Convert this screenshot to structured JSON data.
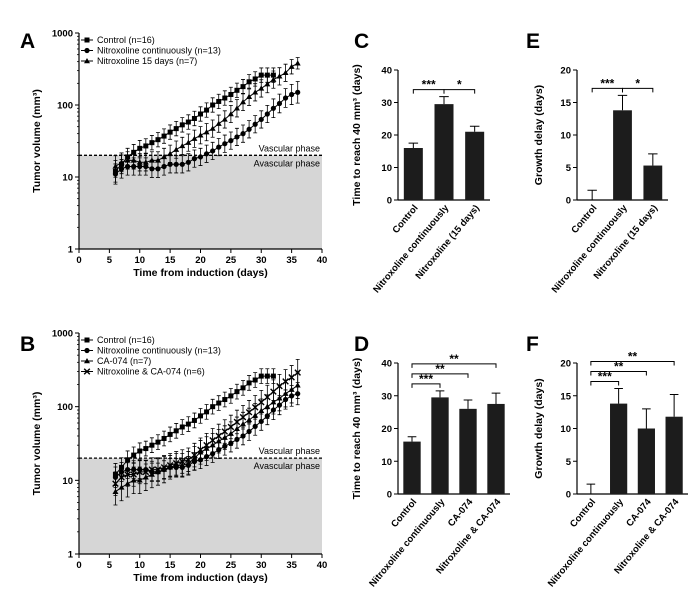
{
  "chart_data": [
    {
      "panel": "A",
      "type": "line",
      "xlabel": "Time from induction (days)",
      "ylabel": "Tumor volume (mm³)",
      "yscale": "log",
      "xlim": [
        0,
        40
      ],
      "ylim": [
        1,
        1000
      ],
      "xticks": [
        "0",
        "5",
        "10",
        "15",
        "20",
        "25",
        "30",
        "35",
        "40"
      ],
      "yticks": [
        "1",
        "10",
        "100",
        "1000"
      ],
      "threshold": 20,
      "threshold_labels": [
        "Vascular phase",
        "Avascular phase"
      ],
      "legend_position": "top-left",
      "series": [
        {
          "name": "Control (n=16)",
          "marker": "square",
          "x": [
            6,
            7,
            8,
            9,
            10,
            11,
            12,
            13,
            14,
            15,
            16,
            17,
            18,
            19,
            20,
            21,
            22,
            23,
            24,
            25,
            26,
            27,
            28,
            29,
            30,
            31,
            32
          ],
          "y": [
            12,
            15,
            19,
            22,
            25,
            27,
            30,
            33,
            37,
            42,
            47,
            53,
            58,
            65,
            75,
            85,
            100,
            112,
            125,
            140,
            160,
            180,
            210,
            230,
            260,
            260,
            260
          ],
          "err": [
            0.15,
            0.13,
            0.12,
            0.11,
            0.11,
            0.1,
            0.1,
            0.1,
            0.1,
            0.1,
            0.1,
            0.1,
            0.1,
            0.1,
            0.1,
            0.1,
            0.1,
            0.1,
            0.1,
            0.1,
            0.1,
            0.1,
            0.1,
            0.1,
            0.1,
            0.1,
            0.1
          ]
        },
        {
          "name": "Nitroxoline continuously (n=13)",
          "marker": "circle",
          "x": [
            6,
            7,
            8,
            9,
            10,
            11,
            12,
            13,
            14,
            15,
            16,
            17,
            18,
            19,
            20,
            21,
            22,
            23,
            24,
            25,
            26,
            27,
            28,
            29,
            30,
            31,
            32,
            33,
            34,
            35,
            36
          ],
          "y": [
            11,
            13,
            14,
            14,
            14,
            14,
            13,
            13,
            14,
            15,
            15,
            15,
            16,
            18,
            19,
            21,
            23,
            26,
            29,
            32,
            36,
            40,
            46,
            54,
            63,
            75,
            90,
            105,
            125,
            140,
            150
          ],
          "err": [
            0.14,
            0.13,
            0.12,
            0.12,
            0.12,
            0.12,
            0.12,
            0.12,
            0.12,
            0.12,
            0.12,
            0.12,
            0.12,
            0.12,
            0.12,
            0.12,
            0.12,
            0.12,
            0.12,
            0.12,
            0.12,
            0.12,
            0.12,
            0.12,
            0.12,
            0.12,
            0.13,
            0.13,
            0.13,
            0.14,
            0.15
          ]
        },
        {
          "name": "Nitroxoline 15 days (n=7)",
          "marker": "triangle",
          "x": [
            6,
            7,
            8,
            9,
            10,
            11,
            12,
            13,
            14,
            15,
            16,
            17,
            18,
            19,
            20,
            21,
            22,
            23,
            24,
            25,
            26,
            27,
            28,
            29,
            30,
            31,
            32,
            33,
            34,
            35,
            36
          ],
          "y": [
            14,
            16,
            17,
            17,
            16,
            16,
            17,
            17,
            19,
            21,
            24,
            27,
            30,
            34,
            38,
            42,
            47,
            55,
            63,
            75,
            90,
            110,
            130,
            150,
            170,
            195,
            225,
            250,
            280,
            340,
            380
          ],
          "err": [
            0.15,
            0.13,
            0.12,
            0.12,
            0.12,
            0.12,
            0.12,
            0.12,
            0.12,
            0.12,
            0.12,
            0.12,
            0.12,
            0.12,
            0.12,
            0.12,
            0.12,
            0.12,
            0.12,
            0.12,
            0.12,
            0.12,
            0.12,
            0.12,
            0.12,
            0.12,
            0.12,
            0.12,
            0.12,
            0.1,
            0.08
          ]
        }
      ]
    },
    {
      "panel": "B",
      "type": "line",
      "xlabel": "Time from induction (days)",
      "ylabel": "Tumor volume (mm³)",
      "yscale": "log",
      "xlim": [
        0,
        40
      ],
      "ylim": [
        1,
        1000
      ],
      "xticks": [
        "0",
        "5",
        "10",
        "15",
        "20",
        "25",
        "30",
        "35",
        "40"
      ],
      "yticks": [
        "1",
        "10",
        "100",
        "1000"
      ],
      "threshold": 20,
      "threshold_labels": [
        "Vascular phase",
        "Avascular phase"
      ],
      "legend_position": "top-left",
      "series": [
        {
          "name": "Control (n=16)",
          "marker": "square",
          "x": [
            6,
            7,
            8,
            9,
            10,
            11,
            12,
            13,
            14,
            15,
            16,
            17,
            18,
            19,
            20,
            21,
            22,
            23,
            24,
            25,
            26,
            27,
            28,
            29,
            30,
            31,
            32
          ],
          "y": [
            12,
            15,
            19,
            22,
            25,
            27,
            30,
            33,
            37,
            42,
            47,
            53,
            58,
            65,
            75,
            85,
            100,
            112,
            125,
            140,
            160,
            180,
            210,
            230,
            260,
            260,
            260
          ],
          "err": [
            0.15,
            0.13,
            0.12,
            0.11,
            0.11,
            0.1,
            0.1,
            0.1,
            0.1,
            0.1,
            0.1,
            0.1,
            0.1,
            0.1,
            0.1,
            0.1,
            0.1,
            0.1,
            0.1,
            0.1,
            0.1,
            0.1,
            0.1,
            0.1,
            0.1,
            0.1,
            0.1
          ]
        },
        {
          "name": "Nitroxoline continuously (n=13)",
          "marker": "circle",
          "x": [
            6,
            7,
            8,
            9,
            10,
            11,
            12,
            13,
            14,
            15,
            16,
            17,
            18,
            19,
            20,
            21,
            22,
            23,
            24,
            25,
            26,
            27,
            28,
            29,
            30,
            31,
            32,
            33,
            34,
            35,
            36
          ],
          "y": [
            11,
            13,
            14,
            14,
            14,
            14,
            13,
            13,
            14,
            15,
            15,
            15,
            16,
            18,
            19,
            21,
            23,
            26,
            29,
            32,
            36,
            40,
            46,
            54,
            63,
            75,
            90,
            105,
            125,
            140,
            150
          ],
          "err": [
            0.14,
            0.13,
            0.12,
            0.12,
            0.12,
            0.12,
            0.12,
            0.12,
            0.12,
            0.12,
            0.12,
            0.12,
            0.12,
            0.12,
            0.12,
            0.12,
            0.12,
            0.12,
            0.12,
            0.12,
            0.12,
            0.12,
            0.12,
            0.12,
            0.12,
            0.12,
            0.13,
            0.13,
            0.13,
            0.14,
            0.15
          ]
        },
        {
          "name": "CA-074 (n=7)",
          "marker": "triangle",
          "x": [
            6,
            7,
            8,
            9,
            10,
            11,
            12,
            13,
            14,
            15,
            16,
            17,
            18,
            19,
            20,
            21,
            22,
            23,
            24,
            25,
            26,
            27,
            28,
            29,
            30,
            31,
            32,
            33,
            34,
            35,
            36
          ],
          "y": [
            7,
            8,
            9,
            10,
            10,
            11,
            12,
            13,
            14,
            15,
            16,
            16,
            17,
            20,
            24,
            27,
            30,
            34,
            38,
            43,
            50,
            58,
            66,
            76,
            88,
            100,
            115,
            130,
            150,
            170,
            195
          ],
          "err": [
            0.18,
            0.18,
            0.18,
            0.18,
            0.18,
            0.18,
            0.18,
            0.18,
            0.18,
            0.16,
            0.16,
            0.16,
            0.16,
            0.16,
            0.16,
            0.16,
            0.16,
            0.16,
            0.16,
            0.16,
            0.16,
            0.16,
            0.16,
            0.16,
            0.16,
            0.16,
            0.16,
            0.17,
            0.18,
            0.18,
            0.18
          ]
        },
        {
          "name": "Nitroxoline & CA-074 (n=6)",
          "marker": "cross",
          "x": [
            6,
            7,
            8,
            9,
            10,
            11,
            12,
            13,
            14,
            15,
            16,
            17,
            18,
            19,
            20,
            21,
            22,
            23,
            24,
            25,
            26,
            27,
            28,
            29,
            30,
            31,
            32,
            33,
            34,
            35,
            36
          ],
          "y": [
            9,
            11,
            12,
            12,
            13,
            13,
            14,
            14,
            15,
            16,
            17,
            18,
            19,
            22,
            26,
            30,
            35,
            40,
            46,
            53,
            62,
            72,
            84,
            98,
            115,
            135,
            160,
            190,
            220,
            250,
            290
          ],
          "err": [
            0.16,
            0.16,
            0.16,
            0.16,
            0.16,
            0.16,
            0.16,
            0.16,
            0.16,
            0.16,
            0.16,
            0.16,
            0.16,
            0.16,
            0.16,
            0.16,
            0.16,
            0.16,
            0.16,
            0.16,
            0.16,
            0.16,
            0.16,
            0.16,
            0.16,
            0.16,
            0.16,
            0.16,
            0.16,
            0.16,
            0.18
          ]
        }
      ]
    },
    {
      "panel": "C",
      "type": "bar",
      "ylabel": "Time to reach 40 mm³ (days)",
      "ylim": [
        0,
        40
      ],
      "yticks": [
        "0",
        "10",
        "20",
        "30",
        "40"
      ],
      "categories": [
        "Control",
        "Nitroxoline continuously",
        "Nitroxoline (15 days)"
      ],
      "values": [
        16,
        29.5,
        21
      ],
      "errors": [
        1.5,
        2.3,
        1.7
      ],
      "significance": [
        {
          "from": 0,
          "to": 1,
          "label": "***",
          "level": 0
        },
        {
          "from": 1,
          "to": 2,
          "label": "*",
          "level": 0
        }
      ]
    },
    {
      "panel": "D",
      "type": "bar",
      "ylabel": "Time to reach 40 mm³ (days)",
      "ylim": [
        0,
        40
      ],
      "yticks": [
        "0",
        "10",
        "20",
        "30",
        "40"
      ],
      "categories": [
        "Control",
        "Nitroxoline continuously",
        "CA-074",
        "Nitroxoline & CA-074"
      ],
      "values": [
        16,
        29.5,
        26,
        27.5
      ],
      "errors": [
        1.5,
        2,
        2.7,
        3.3
      ],
      "significance": [
        {
          "from": 0,
          "to": 1,
          "label": "***",
          "level": 0
        },
        {
          "from": 0,
          "to": 2,
          "label": "**",
          "level": 1
        },
        {
          "from": 0,
          "to": 3,
          "label": "**",
          "level": 2
        }
      ]
    },
    {
      "panel": "E",
      "type": "bar",
      "ylabel": "Growth delay (days)",
      "ylim": [
        0,
        20
      ],
      "yticks": [
        "0",
        "5",
        "10",
        "15",
        "20"
      ],
      "categories": [
        "Control",
        "Nitroxoline continuously",
        "Nitroxoline (15 days)"
      ],
      "values": [
        0,
        13.8,
        5.3
      ],
      "errors": [
        1.5,
        2.3,
        1.8
      ],
      "significance": [
        {
          "from": 0,
          "to": 1,
          "label": "***",
          "level": 0
        },
        {
          "from": 1,
          "to": 2,
          "label": "*",
          "level": 0
        }
      ]
    },
    {
      "panel": "F",
      "type": "bar",
      "ylabel": "Growth delay (days)",
      "ylim": [
        0,
        20
      ],
      "yticks": [
        "0",
        "5",
        "10",
        "15",
        "20"
      ],
      "categories": [
        "Control",
        "Nitroxoline continuously",
        "CA-074",
        "Nitroxoline & CA-074"
      ],
      "values": [
        0,
        13.8,
        10,
        11.8
      ],
      "errors": [
        1.5,
        2.3,
        3,
        3.4
      ],
      "significance": [
        {
          "from": 0,
          "to": 1,
          "label": "***",
          "level": 0
        },
        {
          "from": 0,
          "to": 2,
          "label": "**",
          "level": 1
        },
        {
          "from": 0,
          "to": 3,
          "label": "**",
          "level": 2
        }
      ]
    }
  ]
}
